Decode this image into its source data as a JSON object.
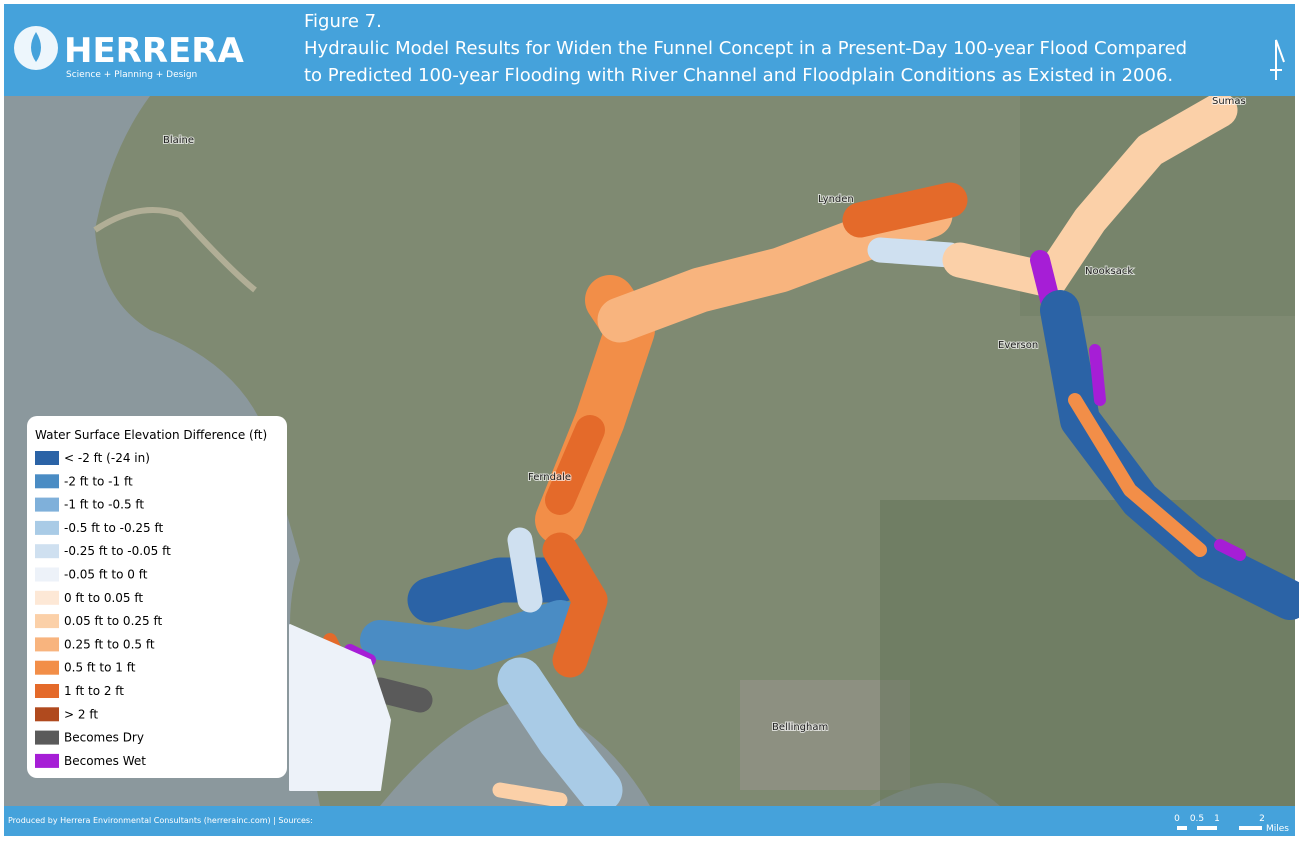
{
  "header": {
    "logo_name": "HERRERA",
    "logo_tagline": "Science + Planning + Design",
    "figure": "Figure 7.",
    "title_lines": [
      "Hydraulic Model Results for Widen the Funnel Concept in a Present-Day 100-year Flood Compared",
      "to Predicted 100-year Flooding with River Channel and Floodplain Conditions as Existed in 2006."
    ]
  },
  "places": [
    "Blaine",
    "Lynden",
    "Sumas",
    "Nooksack",
    "Everson",
    "Ferndale",
    "Bellingham"
  ],
  "legend": {
    "title": "Water Surface Elevation Difference (ft)",
    "items": [
      {
        "label": "< -2 ft (-24 in)",
        "color": "#2b63a6"
      },
      {
        "label": "-2 ft to -1 ft",
        "color": "#4a8cc4"
      },
      {
        "label": "-1 ft to -0.5 ft",
        "color": "#7fb0da"
      },
      {
        "label": "-0.5 ft to -0.25 ft",
        "color": "#a9cbe6"
      },
      {
        "label": "-0.25 ft to -0.05 ft",
        "color": "#cfe0f0"
      },
      {
        "label": "-0.05 ft to 0 ft",
        "color": "#edf2f9"
      },
      {
        "label": "0 ft to 0.05 ft",
        "color": "#fde8d6"
      },
      {
        "label": "0.05 ft to 0.25 ft",
        "color": "#fbd0a8"
      },
      {
        "label": "0.25 ft to 0.5 ft",
        "color": "#f8b47e"
      },
      {
        "label": "0.5 ft to 1 ft",
        "color": "#f28e48"
      },
      {
        "label": "1 ft to 2 ft",
        "color": "#e46a2a"
      },
      {
        "label": "> 2 ft",
        "color": "#b04a1e"
      },
      {
        "label": "Becomes Dry",
        "color": "#5a5a5a"
      },
      {
        "label": "Becomes Wet",
        "color": "#a61ed6"
      }
    ]
  },
  "footer": "Produced by Herrera Environmental Consultants (herrerainc.com) | Sources:",
  "scale_bar": {
    "labels": [
      "0",
      "0.5",
      "1",
      "2"
    ],
    "unit": "Miles"
  }
}
